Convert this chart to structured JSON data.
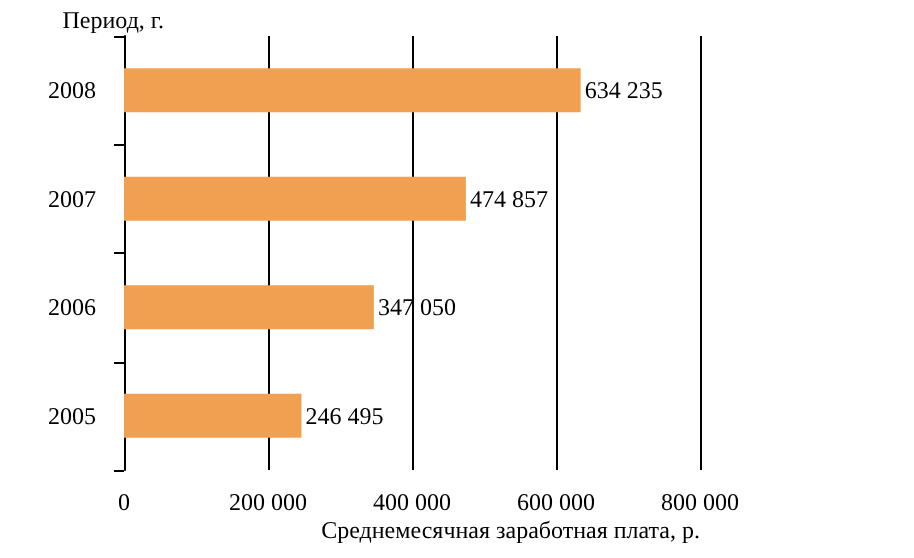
{
  "chart_data": {
    "type": "bar",
    "orientation": "horizontal",
    "ylabel": "Период, г.",
    "xlabel": "Среднемесячная заработная плата, р.",
    "categories": [
      "2008",
      "2007",
      "2006",
      "2005"
    ],
    "values": [
      634235,
      474857,
      347050,
      246495
    ],
    "value_labels": [
      "634 235",
      "474 857",
      "347 050",
      "246 495"
    ],
    "color": "#f0a050",
    "xlim": [
      0,
      800000
    ],
    "xticks": [
      0,
      {
        "value": 200000,
        "label": "200 000"
      },
      {
        "value": 400000,
        "label": "400 000"
      },
      {
        "value": 600000,
        "label": "600 000"
      },
      {
        "value": 800000,
        "label": "800 000"
      }
    ],
    "grid": "x"
  }
}
